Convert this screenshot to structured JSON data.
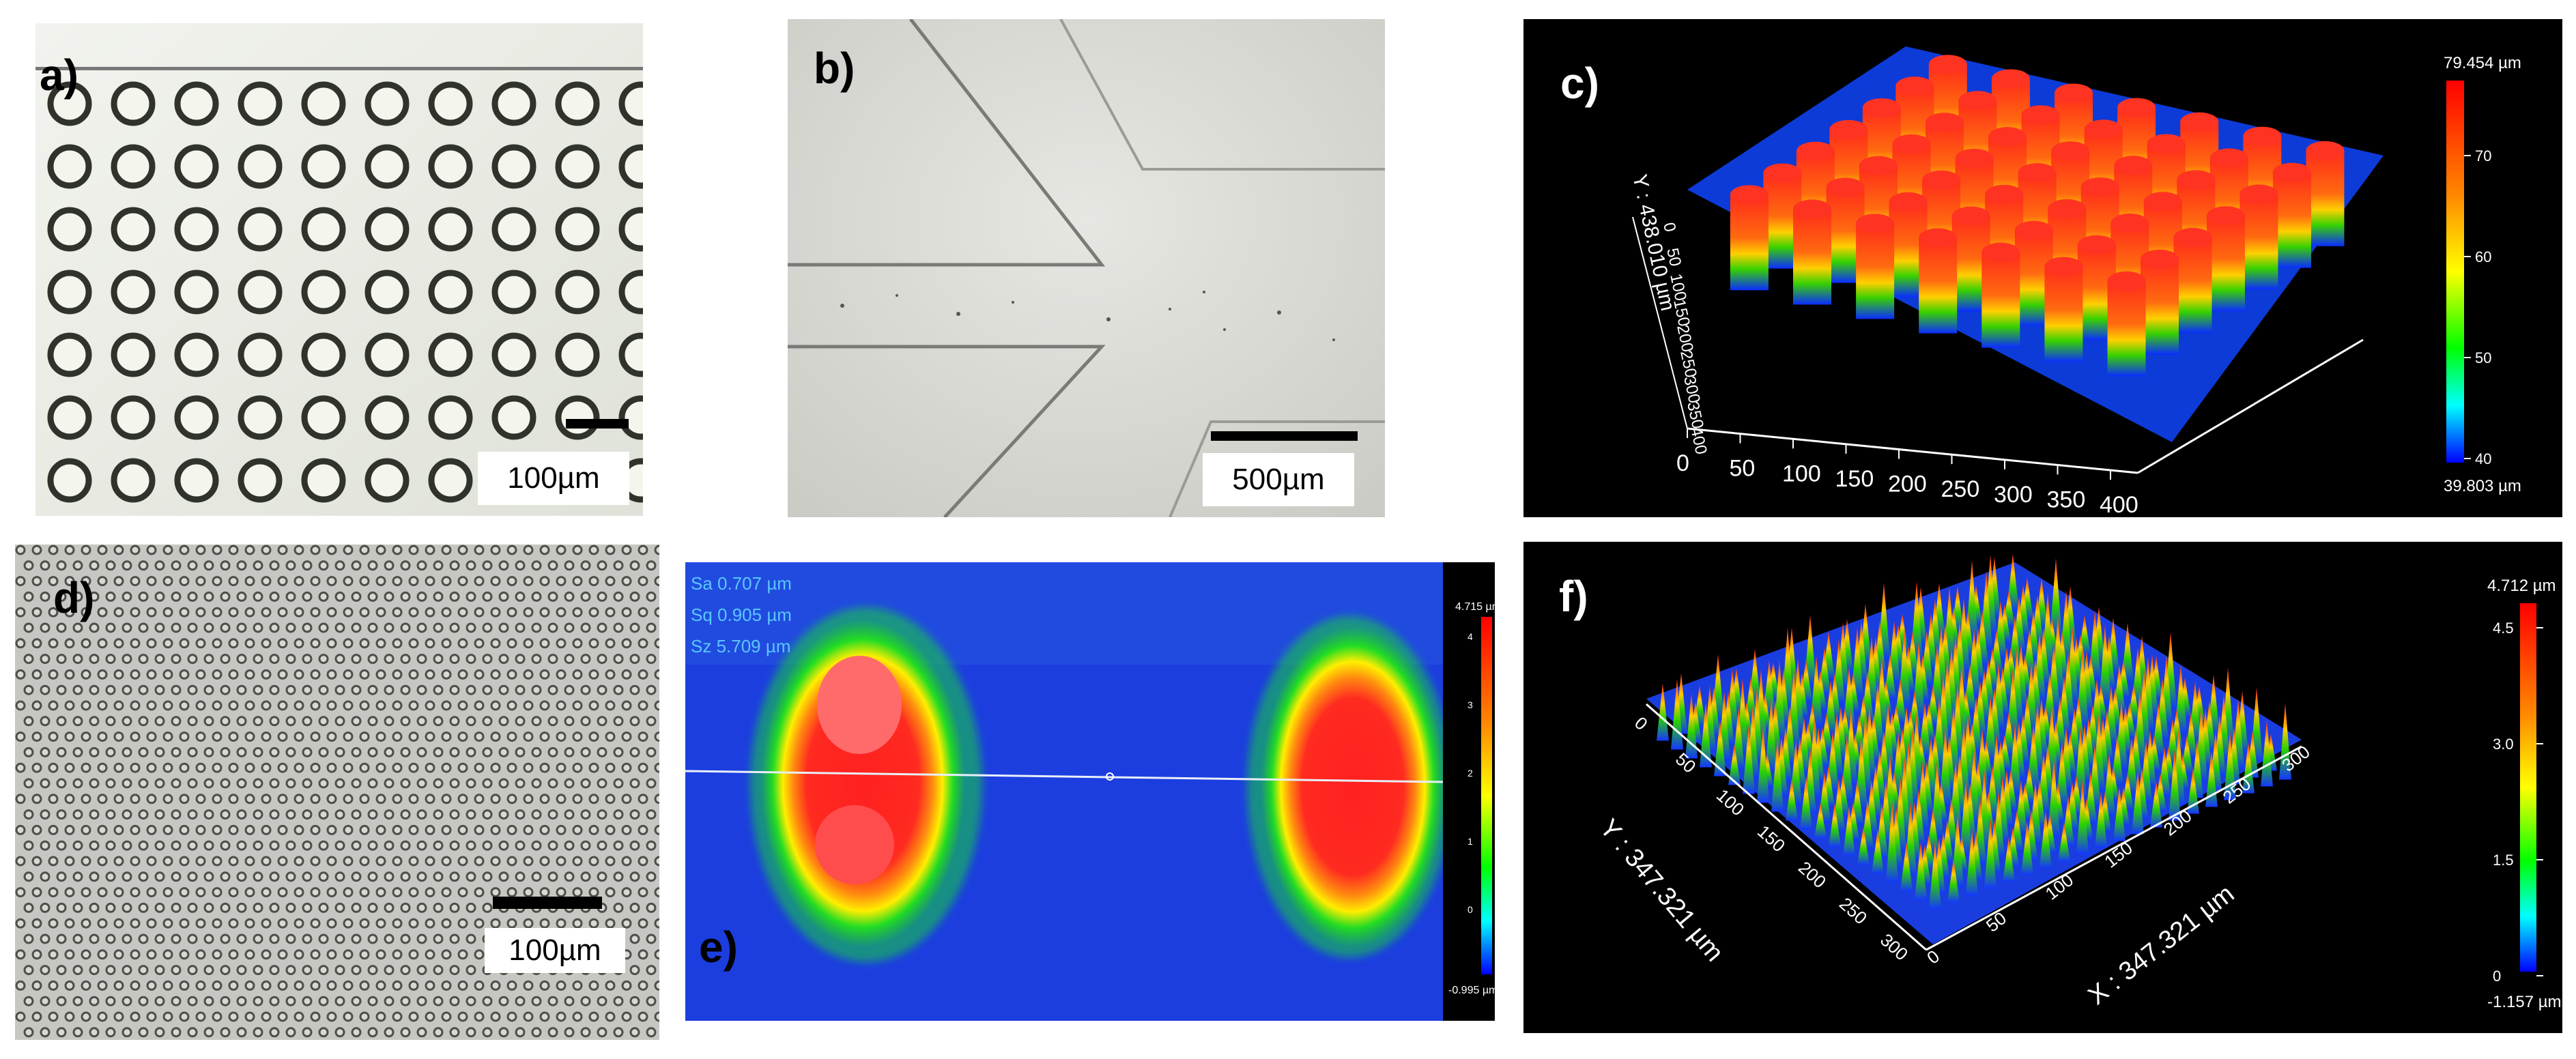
{
  "panels": {
    "a": {
      "label": "a)",
      "scale_bar": "100µm"
    },
    "b": {
      "label": "b)",
      "scale_bar": "500µm"
    },
    "c": {
      "label": "c)",
      "axis_y_label": "Y : 438.010 µm",
      "x_ticks": [
        "0",
        "50",
        "100",
        "150",
        "200",
        "250",
        "300",
        "350",
        "400"
      ],
      "y_ticks": [
        "0",
        "50",
        "100",
        "150",
        "200",
        "250",
        "300",
        "350",
        "400"
      ],
      "colorbar_max": "79.454 µm",
      "colorbar_min": "39.803 µm",
      "colorbar_ticks": [
        "70",
        "60",
        "50",
        "40"
      ]
    },
    "d": {
      "label": "d)",
      "scale_bar": "100µm"
    },
    "e": {
      "label": "e)",
      "stats": [
        "Sa 0.707 µm",
        "Sq 0.905 µm",
        "Sz 5.709 µm"
      ],
      "colorbar_max": "4.715 µm",
      "colorbar_min": "-0.995 µm",
      "colorbar_ticks": [
        "4",
        "3",
        "2",
        "1",
        "0"
      ]
    },
    "f": {
      "label": "f)",
      "axis_y_label": "Y : 347.321 µm",
      "axis_x_label": "X : 347.321 µm",
      "y_ticks": [
        "0",
        "50",
        "100",
        "150",
        "200",
        "250",
        "300"
      ],
      "x_ticks": [
        "0",
        "50",
        "100",
        "150",
        "200",
        "250",
        "300"
      ],
      "colorbar_max": "4.712 µm",
      "colorbar_min": "-1.157 µm",
      "colorbar_ticks": [
        "4.5",
        "3.0",
        "1.5",
        "0"
      ]
    }
  }
}
